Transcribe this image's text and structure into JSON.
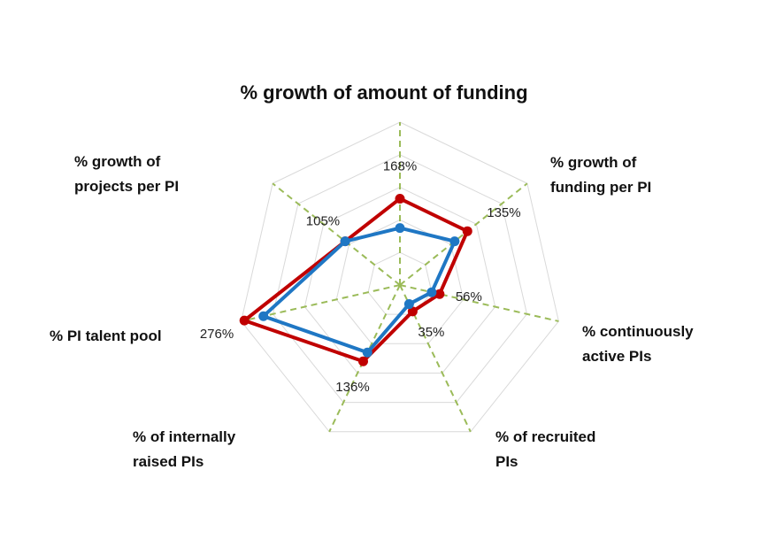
{
  "chart_data": {
    "type": "radar",
    "title": "% growth of amount of funding",
    "axes": [
      {
        "label_lines": [
          "% growth of",
          "projects per PI"
        ]
      },
      {
        "label_lines": [
          "% PI talent pool"
        ]
      },
      {
        "label_lines": [
          "%  of internally",
          "raised PIs"
        ]
      },
      {
        "label_lines": [
          "% of recruited",
          "PIs"
        ]
      },
      {
        "label_lines": [
          "% continuously",
          "active PIs"
        ]
      },
      {
        "label_lines": [
          "% growth of",
          "funding per PI"
        ]
      }
    ],
    "title_axis_index": 0,
    "value_labels": [
      "168%",
      "135%",
      "56%",
      "35%",
      "136%",
      "276%",
      "105%"
    ],
    "series": [
      {
        "color": "#c00000",
        "values": [
          0.53,
          0.53,
          0.25,
          0.18,
          0.52,
          0.98,
          0.43
        ]
      },
      {
        "color": "#1f77c4",
        "values": [
          0.35,
          0.43,
          0.2,
          0.13,
          0.46,
          0.86,
          0.43
        ]
      }
    ],
    "grid_levels": 5,
    "colors": {
      "grid": "#d9d9d9",
      "spoke": "#9bbb59"
    }
  }
}
